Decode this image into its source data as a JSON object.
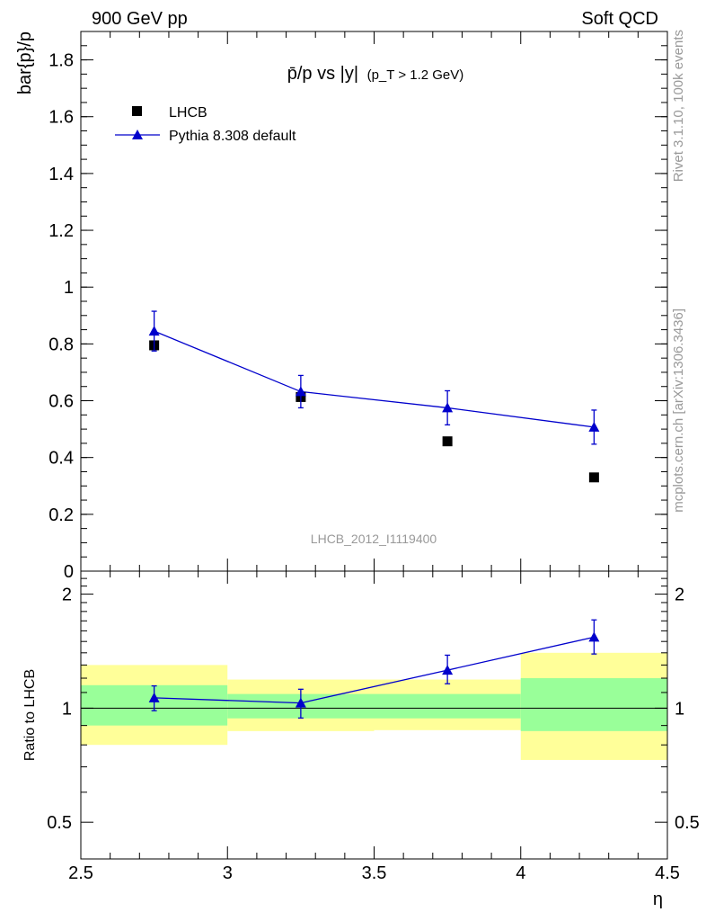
{
  "header": {
    "left_label": "900 GeV pp",
    "right_label": "Soft QCD"
  },
  "side_labels": {
    "rivet": "Rivet 3.1.10,  100k events",
    "mcplots": "mcplots.cern.ch [arXiv:1306.3436]"
  },
  "watermark": "LHCB_2012_I1119400",
  "chart_data": [
    {
      "type": "scatter",
      "panel": "main",
      "title": "p̄/p vs |y|",
      "title_cut": "(p_T > 1.2 GeV)",
      "ylabel": "bar{p}/p",
      "ylim": [
        0,
        1.9
      ],
      "yticks": [
        "0",
        "0.2",
        "0.4",
        "0.6",
        "0.8",
        "1",
        "1.2",
        "1.4",
        "1.6",
        "1.8"
      ],
      "xlim": [
        2.5,
        4.5
      ],
      "legend_placement": "top-left",
      "series": [
        {
          "name": "LHCB",
          "marker": "square",
          "color": "#000000",
          "x": [
            2.75,
            3.25,
            3.75,
            4.25
          ],
          "y": [
            0.795,
            0.613,
            0.457,
            0.33
          ]
        },
        {
          "name": "Pythia 8.308 default",
          "marker": "triangle",
          "color": "#0000cc",
          "x": [
            2.75,
            3.25,
            3.75,
            4.25
          ],
          "y": [
            0.845,
            0.632,
            0.575,
            0.507
          ],
          "err": [
            0.07,
            0.057,
            0.06,
            0.06
          ]
        }
      ]
    },
    {
      "type": "scatter",
      "panel": "ratio",
      "ylabel": "Ratio to LHCB",
      "ylim": [
        0.4,
        2.3
      ],
      "yscale": "log",
      "yticks": [
        "0.5",
        "1",
        "2"
      ],
      "xlabel": "η",
      "xticks": [
        "2.5",
        "3",
        "3.5",
        "4",
        "4.5"
      ],
      "xlim": [
        2.5,
        4.5
      ],
      "bands": {
        "bins": [
          [
            2.5,
            3.0
          ],
          [
            3.0,
            3.5
          ],
          [
            3.5,
            4.0
          ],
          [
            4.0,
            4.5
          ]
        ],
        "stat_color": "#99ff99",
        "total_color": "#ffff99",
        "stat_low": [
          0.9,
          0.94,
          0.94,
          0.87
        ],
        "stat_high": [
          1.15,
          1.09,
          1.09,
          1.2
        ],
        "total_low": [
          0.8,
          0.87,
          0.875,
          0.73
        ],
        "total_high": [
          1.3,
          1.19,
          1.19,
          1.4
        ]
      },
      "series": [
        {
          "name": "Pythia 8.308 default",
          "color": "#0000cc",
          "x": [
            2.75,
            3.25,
            3.75,
            4.25
          ],
          "y": [
            1.065,
            1.032,
            1.26,
            1.54
          ],
          "err_low": [
            0.08,
            0.09,
            0.1,
            0.15
          ],
          "err_high": [
            0.08,
            0.09,
            0.12,
            0.17
          ]
        }
      ]
    }
  ]
}
